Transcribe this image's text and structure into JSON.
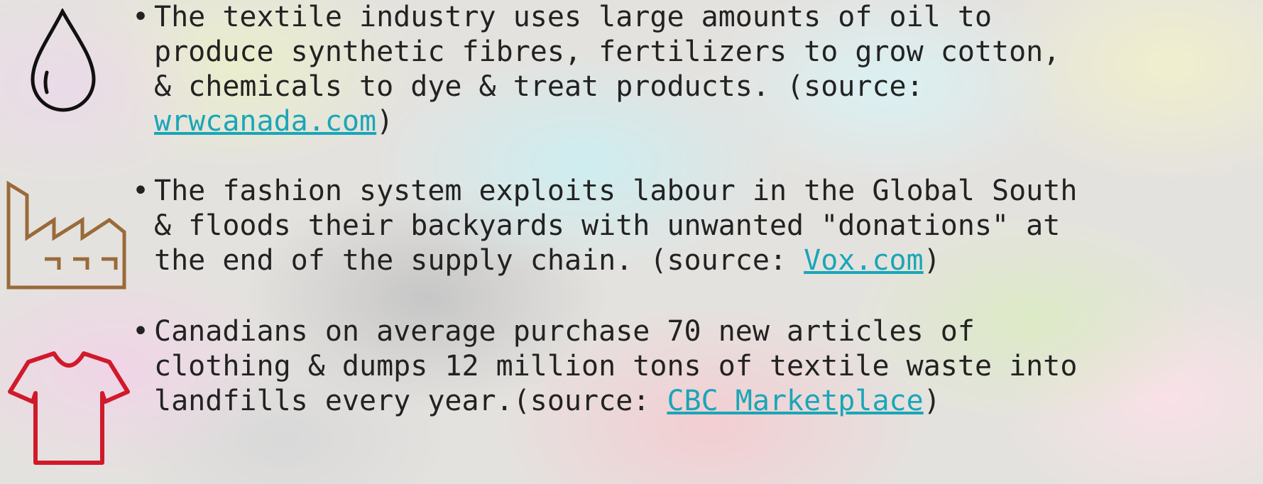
{
  "items": [
    {
      "text": "The textile industry uses large amounts of oil to produce synthetic fibres, fertilizers to grow cotton, & chemicals to dye & treat products. (source: ",
      "link": "wrwcanada.com",
      "after": ")"
    },
    {
      "text": "The fashion system exploits labour in the Global South & floods their backyards with unwanted \"donations\" at the end of the supply chain. (source: ",
      "link": "Vox.com",
      "after": ")"
    },
    {
      "text": "Canadians on average purchase 70 new articles of clothing & dumps 12 million tons of textile waste into landfills every year.(source: ",
      "link": "CBC Marketplace",
      "after": ")"
    }
  ]
}
